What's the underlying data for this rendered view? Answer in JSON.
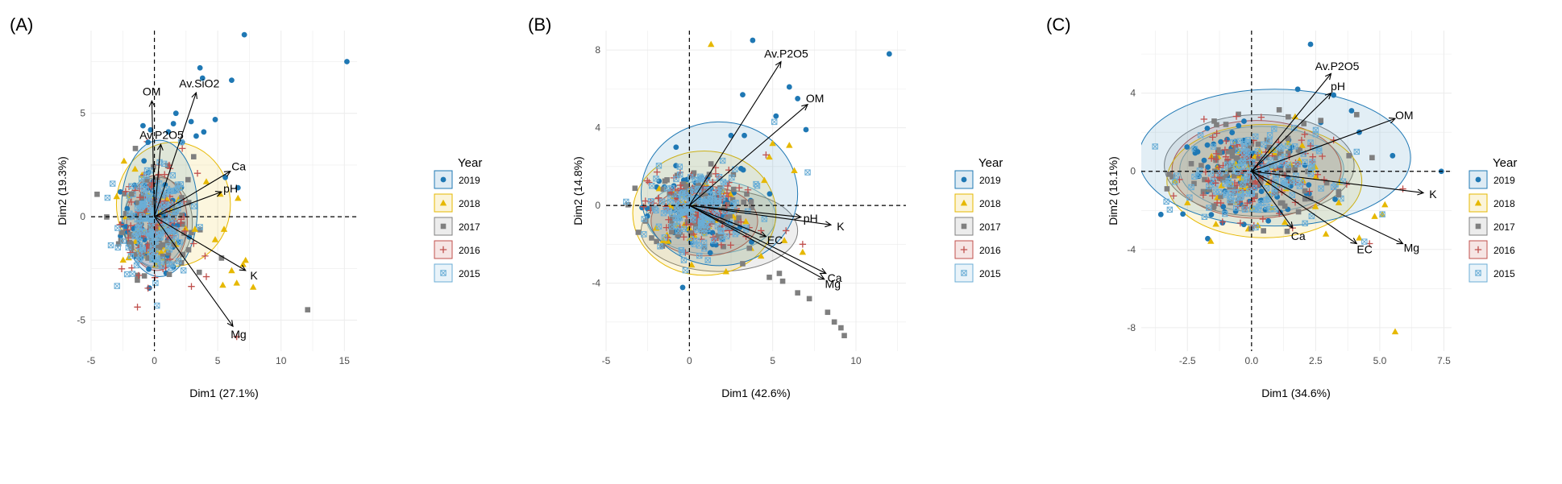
{
  "colors": {
    "2019": "#1f78b4",
    "2018": "#e6b800",
    "2017": "#7f7f7f",
    "2016": "#c0504d",
    "2015": "#6baed6",
    "grid": "#ececec",
    "tick": "#4d4d4d",
    "arrow": "#000000"
  },
  "legend": {
    "title": "Year",
    "entries": [
      {
        "label": "2019",
        "shape": "circle"
      },
      {
        "label": "2018",
        "shape": "triangle"
      },
      {
        "label": "2017",
        "shape": "square"
      },
      {
        "label": "2016",
        "shape": "plus"
      },
      {
        "label": "2015",
        "shape": "square-x"
      }
    ]
  },
  "chart_data": [
    {
      "panel_label": "(A)",
      "type": "scatter",
      "title": "",
      "xlabel": "Dim1 (27.1%)",
      "ylabel": "Dim2 (19.3%)",
      "xlim": [
        -5,
        16
      ],
      "ylim": [
        -6.5,
        9
      ],
      "xticks": [
        -5,
        0,
        5,
        10,
        15
      ],
      "xtick_labels": [
        "-5",
        "0",
        "5",
        "10",
        "15"
      ],
      "yticks": [
        -5,
        0,
        5
      ],
      "ytick_labels": [
        "-5",
        "0",
        "5"
      ],
      "vectors": [
        {
          "name": "OM",
          "x": -0.2,
          "y": 5.6
        },
        {
          "name": "Av.SiO2",
          "x": 3.3,
          "y": 6.0
        },
        {
          "name": "Av.P2O5",
          "x": 0.5,
          "y": 3.5
        },
        {
          "name": "Ca",
          "x": 6.0,
          "y": 2.2
        },
        {
          "name": "pH",
          "x": 5.3,
          "y": 1.2
        },
        {
          "name": "K",
          "x": 7.2,
          "y": -2.6
        },
        {
          "name": "Mg",
          "x": 6.2,
          "y": -5.3
        }
      ],
      "ellipses": [
        {
          "series": "2019",
          "cx": 0.4,
          "cy": 0.4,
          "rx": 3.0,
          "ry": 3.3
        },
        {
          "series": "2018",
          "cx": 1.5,
          "cy": 0.6,
          "rx": 4.5,
          "ry": 3.0
        },
        {
          "series": "2017",
          "cx": 0.3,
          "cy": -0.3,
          "rx": 2.7,
          "ry": 2.2
        },
        {
          "series": "2016",
          "cx": 0.2,
          "cy": -0.3,
          "rx": 2.4,
          "ry": 2.3
        },
        {
          "series": "2015",
          "cx": 0.1,
          "cy": -0.2,
          "rx": 2.5,
          "ry": 2.2
        }
      ],
      "points": {
        "2019": [
          [
            15.2,
            7.5
          ],
          [
            7.1,
            8.8
          ],
          [
            3.6,
            7.2
          ],
          [
            3.8,
            6.7
          ],
          [
            6.1,
            6.6
          ],
          [
            4.8,
            4.7
          ],
          [
            3.9,
            4.1
          ],
          [
            3.3,
            3.9
          ],
          [
            2.9,
            4.6
          ],
          [
            1.5,
            4.5
          ],
          [
            2.2,
            3.6
          ],
          [
            -0.3,
            4.2
          ],
          [
            -0.9,
            4.4
          ],
          [
            1.1,
            4.1
          ],
          [
            1.7,
            5.0
          ],
          [
            6.6,
            1.4
          ],
          [
            5.6,
            1.9
          ],
          [
            -0.5,
            3.6
          ]
        ],
        "2018": [
          [
            7.8,
            -3.4
          ],
          [
            7.0,
            -2.3
          ],
          [
            6.5,
            -3.2
          ],
          [
            5.4,
            -3.3
          ],
          [
            7.2,
            -2.1
          ],
          [
            5.5,
            -0.6
          ],
          [
            6.1,
            -2.6
          ],
          [
            4.8,
            -1.1
          ],
          [
            3.2,
            -0.6
          ],
          [
            6.6,
            0.9
          ],
          [
            5.2,
            1.1
          ],
          [
            -2.4,
            2.7
          ],
          [
            4.1,
            1.7
          ]
        ],
        "2017": [
          [
            12.1,
            -4.5
          ],
          [
            5.3,
            -2.0
          ],
          [
            -1.5,
            3.3
          ],
          [
            3.1,
            2.9
          ],
          [
            -1.8,
            1.1
          ],
          [
            2.7,
            -1.6
          ]
        ],
        "2016": [
          [
            6.5,
            -5.8
          ],
          [
            4.1,
            -2.9
          ],
          [
            3.4,
            2.1
          ],
          [
            3.1,
            -1.3
          ],
          [
            2.2,
            3.3
          ],
          [
            4.0,
            -1.9
          ]
        ],
        "2015": [
          [
            0.2,
            -4.3
          ],
          [
            2.3,
            -2.6
          ],
          [
            -3.3,
            1.6
          ],
          [
            2.1,
            3.6
          ],
          [
            1.4,
            -2.3
          ],
          [
            3.6,
            -0.5
          ]
        ]
      },
      "cluster": {
        "cx": 0.0,
        "cy": -0.3,
        "sx": 1.3,
        "sy": 1.2
      }
    },
    {
      "panel_label": "(B)",
      "type": "scatter",
      "title": "",
      "xlabel": "Dim1 (42.6%)",
      "ylabel": "Dim2 (14.8%)",
      "xlim": [
        -5,
        13
      ],
      "ylim": [
        -7.5,
        9
      ],
      "xticks": [
        -5,
        0,
        5,
        10
      ],
      "xtick_labels": [
        "-5",
        "0",
        "5",
        "10"
      ],
      "yticks": [
        -4,
        0,
        4,
        8
      ],
      "ytick_labels": [
        "-4",
        "0",
        "4",
        "8"
      ],
      "vectors": [
        {
          "name": "Av.P2O5",
          "x": 5.5,
          "y": 7.4
        },
        {
          "name": "OM",
          "x": 7.1,
          "y": 5.2
        },
        {
          "name": "pH",
          "x": 6.7,
          "y": -0.6
        },
        {
          "name": "K",
          "x": 8.5,
          "y": -1.0
        },
        {
          "name": "EC",
          "x": 4.6,
          "y": -1.6
        },
        {
          "name": "Ca",
          "x": 8.2,
          "y": -3.5
        },
        {
          "name": "Mg",
          "x": 8.1,
          "y": -3.8
        }
      ],
      "ellipses": [
        {
          "series": "2019",
          "cx": 1.8,
          "cy": 0.6,
          "rx": 4.7,
          "ry": 3.7
        },
        {
          "series": "2018",
          "cx": 0.9,
          "cy": -0.4,
          "rx": 4.3,
          "ry": 3.2
        },
        {
          "series": "2017",
          "cx": 1.8,
          "cy": -1.3,
          "rx": 4.7,
          "ry": 2.1
        },
        {
          "series": "2016",
          "cx": 0.9,
          "cy": -0.8,
          "rx": 3.2,
          "ry": 1.8
        },
        {
          "series": "2015",
          "cx": 1.3,
          "cy": -0.6,
          "rx": 3.9,
          "ry": 1.9
        }
      ],
      "points": {
        "2019": [
          [
            12.0,
            7.8
          ],
          [
            3.8,
            8.5
          ],
          [
            6.0,
            6.1
          ],
          [
            6.5,
            5.5
          ],
          [
            3.2,
            5.7
          ],
          [
            5.2,
            4.6
          ],
          [
            7.0,
            3.9
          ],
          [
            2.5,
            3.6
          ],
          [
            3.1,
            1.9
          ],
          [
            -0.8,
            3.0
          ],
          [
            3.3,
            3.6
          ]
        ],
        "2018": [
          [
            1.3,
            8.3
          ],
          [
            5.0,
            3.2
          ],
          [
            6.0,
            3.1
          ],
          [
            4.5,
            1.3
          ],
          [
            6.3,
            1.8
          ],
          [
            5.7,
            -1.8
          ],
          [
            4.3,
            -2.6
          ],
          [
            6.8,
            -2.4
          ],
          [
            2.2,
            -3.4
          ],
          [
            3.7,
            -2.2
          ],
          [
            4.8,
            2.5
          ]
        ],
        "2017": [
          [
            9.3,
            -6.7
          ],
          [
            9.1,
            -6.3
          ],
          [
            8.7,
            -6.0
          ],
          [
            8.3,
            -5.5
          ],
          [
            6.5,
            -4.5
          ],
          [
            4.8,
            -3.7
          ],
          [
            5.4,
            -3.5
          ],
          [
            3.6,
            -2.2
          ],
          [
            3.2,
            -3.0
          ],
          [
            5.6,
            -3.9
          ],
          [
            7.2,
            -4.8
          ]
        ],
        "2016": [
          [
            6.8,
            -2.0
          ],
          [
            4.3,
            -1.3
          ],
          [
            2.3,
            1.0
          ],
          [
            4.6,
            2.6
          ],
          [
            3.4,
            -1.6
          ],
          [
            5.8,
            -1.3
          ]
        ],
        "2015": [
          [
            7.1,
            1.7
          ],
          [
            5.1,
            4.3
          ],
          [
            2.0,
            2.3
          ],
          [
            3.5,
            -0.3
          ],
          [
            0.3,
            -2.0
          ],
          [
            4.0,
            1.1
          ],
          [
            4.5,
            -0.7
          ]
        ]
      },
      "cluster": {
        "cx": 0.4,
        "cy": -0.2,
        "sx": 1.4,
        "sy": 1.0
      }
    },
    {
      "panel_label": "(C)",
      "type": "scatter",
      "title": "",
      "xlabel": "Dim1 (34.6%)",
      "ylabel": "Dim2 (18.1%)",
      "xlim": [
        -4.3,
        7.8
      ],
      "ylim": [
        -9.2,
        7.2
      ],
      "xticks": [
        -2.5,
        0,
        2.5,
        5,
        7.5
      ],
      "xtick_labels": [
        "-2.5",
        "0.0",
        "2.5",
        "5.0",
        "7.5"
      ],
      "yticks": [
        -8,
        -4,
        0,
        4
      ],
      "ytick_labels": [
        "-8",
        "-4",
        "0",
        "4"
      ],
      "vectors": [
        {
          "name": "Av.P2O5",
          "x": 3.1,
          "y": 5.0
        },
        {
          "name": "pH",
          "x": 3.1,
          "y": 4.0
        },
        {
          "name": "OM",
          "x": 5.6,
          "y": 2.7
        },
        {
          "name": "K",
          "x": 6.7,
          "y": -1.1
        },
        {
          "name": "Mg",
          "x": 5.9,
          "y": -3.7
        },
        {
          "name": "EC",
          "x": 4.1,
          "y": -3.7
        },
        {
          "name": "Ca",
          "x": 1.6,
          "y": -2.9
        }
      ],
      "ellipses": [
        {
          "series": "2019",
          "cx": 0.9,
          "cy": 0.7,
          "rx": 5.3,
          "ry": 3.5
        },
        {
          "series": "2018",
          "cx": 0.5,
          "cy": -0.5,
          "rx": 3.8,
          "ry": 2.9
        },
        {
          "series": "2017",
          "cx": 0.3,
          "cy": 0.3,
          "rx": 3.7,
          "ry": 2.6
        },
        {
          "series": "2016",
          "cx": 0.2,
          "cy": 0.1,
          "rx": 3.3,
          "ry": 2.5
        },
        {
          "series": "2015",
          "cx": 0.4,
          "cy": 0.1,
          "rx": 3.2,
          "ry": 2.2
        }
      ],
      "points": {
        "2019": [
          [
            2.3,
            6.5
          ],
          [
            7.4,
            0.0
          ],
          [
            5.5,
            0.8
          ],
          [
            3.2,
            3.9
          ],
          [
            1.8,
            4.2
          ],
          [
            2.7,
            2.5
          ],
          [
            4.2,
            2.0
          ],
          [
            -2.1,
            1.0
          ],
          [
            3.9,
            3.1
          ]
        ],
        "2018": [
          [
            5.6,
            -8.2
          ],
          [
            5.2,
            -1.7
          ],
          [
            5.1,
            -2.2
          ],
          [
            4.8,
            -2.3
          ],
          [
            3.4,
            -1.6
          ],
          [
            4.2,
            -3.4
          ],
          [
            2.9,
            -3.2
          ],
          [
            1.7,
            2.8
          ],
          [
            1.3,
            -2.6
          ]
        ],
        "2017": [
          [
            4.1,
            2.9
          ],
          [
            3.8,
            0.8
          ],
          [
            4.7,
            0.7
          ],
          [
            2.7,
            2.6
          ],
          [
            2.3,
            -1.4
          ],
          [
            -1.0,
            2.4
          ],
          [
            3.4,
            -1.2
          ]
        ],
        "2016": [
          [
            5.9,
            -0.9
          ],
          [
            4.6,
            -3.7
          ],
          [
            1.6,
            -2.9
          ],
          [
            2.3,
            1.3
          ],
          [
            -1.4,
            -0.6
          ],
          [
            3.2,
            1.6
          ]
        ],
        "2015": [
          [
            5.1,
            -2.2
          ],
          [
            4.4,
            -3.6
          ],
          [
            2.5,
            1.9
          ],
          [
            4.1,
            1.0
          ],
          [
            0.6,
            -1.8
          ],
          [
            3.2,
            -0.8
          ]
        ]
      },
      "cluster": {
        "cx": 0.0,
        "cy": -0.2,
        "sx": 1.25,
        "sy": 1.15
      }
    }
  ]
}
